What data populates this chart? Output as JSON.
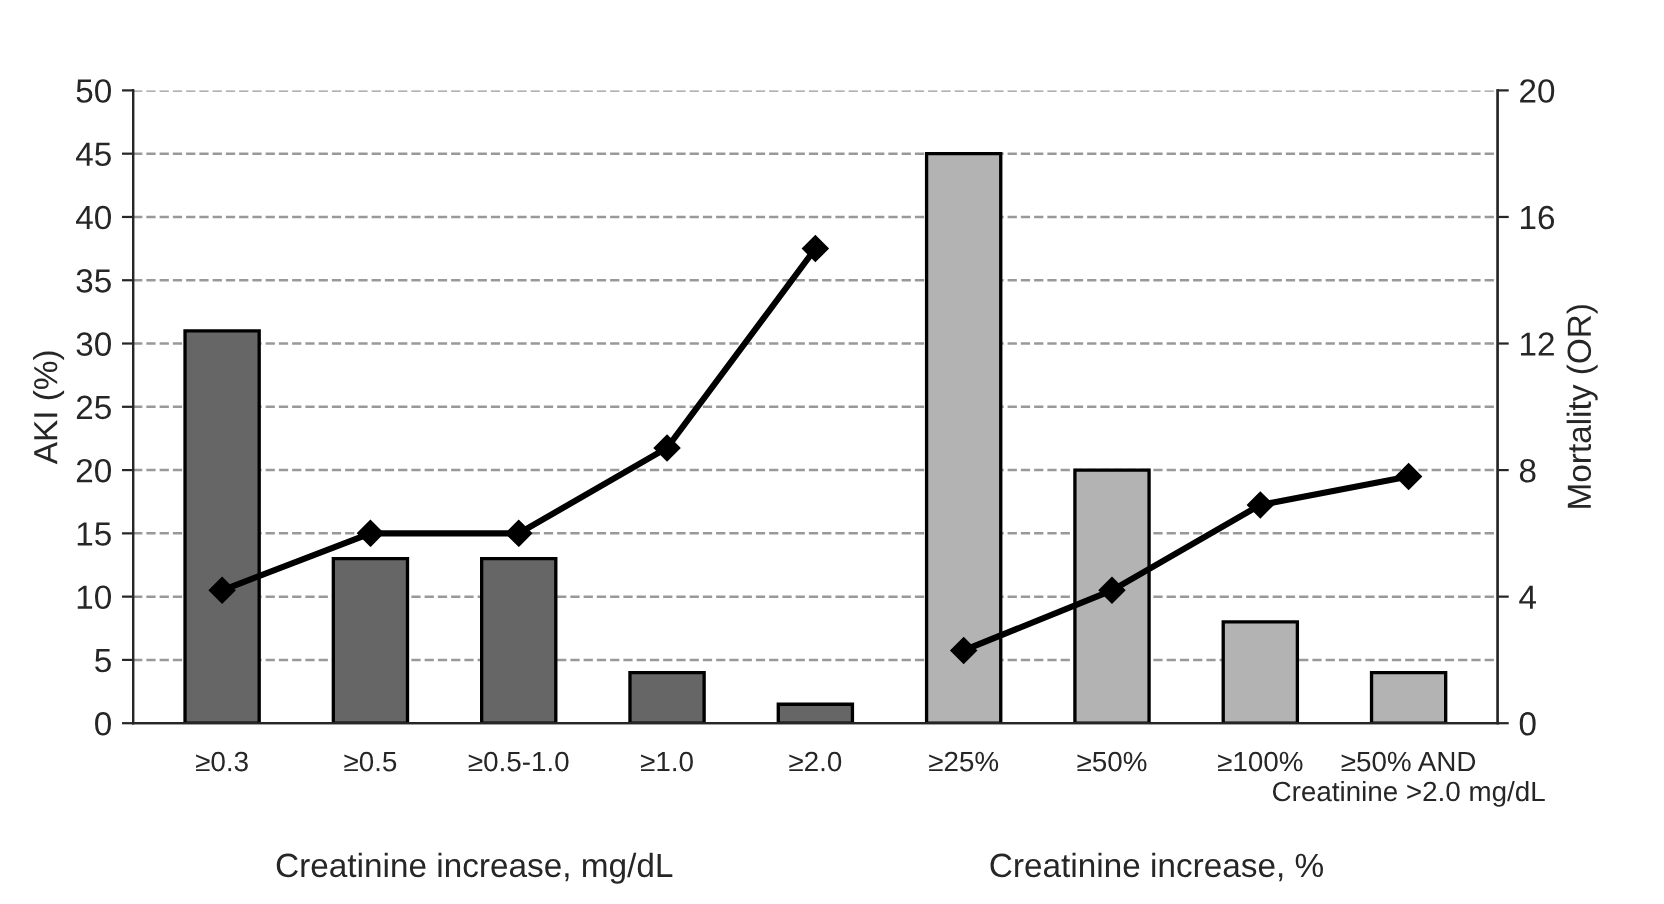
{
  "chart_data": {
    "type": "bar",
    "ylabel": "AKI (%)",
    "y2label": "Mortality (OR)",
    "categories": [
      "≥0.3",
      "≥0.5",
      "≥0.5-1.0",
      "≥1.0",
      "≥2.0",
      "≥25%",
      "≥50%",
      "≥100%",
      "≥50% AND\nCreatinine >2.0 mg/dL"
    ],
    "series": [
      {
        "colors": [
          "#666666",
          "#666666",
          "#666666",
          "#666666",
          "#666666",
          "#b3b3b3",
          "#b3b3b3",
          "#b3b3b3",
          "#b3b3b3"
        ],
        "values": [
          31,
          13,
          13,
          4,
          1.5,
          45,
          20,
          8,
          4
        ]
      },
      {
        "type": "line",
        "axis": "y2",
        "color": "#000000",
        "values": [
          4.2,
          6,
          6,
          8.7,
          15,
          null,
          null,
          null,
          null
        ]
      },
      {
        "type": "line",
        "axis": "y2",
        "color": "#000000",
        "values": [
          null,
          null,
          null,
          null,
          null,
          2.3,
          4.2,
          6.9,
          7.8
        ]
      }
    ],
    "ylim": [
      0,
      50
    ],
    "yticks": [
      0,
      5,
      10,
      15,
      20,
      25,
      30,
      35,
      40,
      45,
      50
    ],
    "y2lim": [
      0,
      20
    ],
    "y2ticks": [
      0,
      4,
      8,
      12,
      16,
      20
    ],
    "grid": "y",
    "marker": "diamond",
    "line_style": "solid",
    "legend": false,
    "annotations": [
      "Creatinine increase, mg/dL",
      "Creatinine increase, %"
    ]
  }
}
